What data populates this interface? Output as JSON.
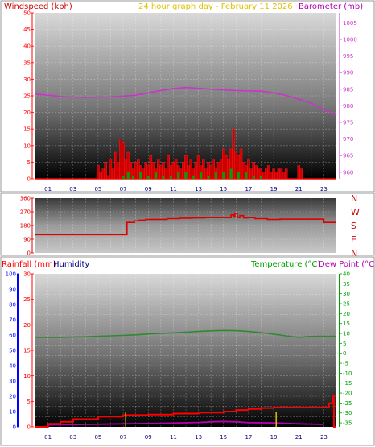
{
  "header": {
    "left": "Windspeed (kph)",
    "center": "24 hour graph day - February 11 2026",
    "right": "Barometer (mb)"
  },
  "bottom_header": {
    "rain": "Rainfall (mm)",
    "humidity": "Humidity",
    "temperature": "Temperature (°C)",
    "dewpoint": "Dew Point (°C)"
  },
  "colors": {
    "wind": "#ff0000",
    "barometer": "#cc33cc",
    "gust_fill": "#cc0000",
    "avg_wind": "#00a000",
    "direction": "#dd0000",
    "temperature": "#2f8a2f",
    "rain": "#ff0000",
    "dewpoint": "#b400b4",
    "humidity_axis": "#0000ff",
    "rain_axis": "#ff0000",
    "temp_axis": "#00a000",
    "header_left": "#cc0000",
    "header_center": "#e0c000",
    "header_right": "#b000b0"
  },
  "chart_data": [
    {
      "type": "bar",
      "panel": "wind",
      "x_ticks": [
        "01",
        "03",
        "05",
        "07",
        "09",
        "11",
        "13",
        "15",
        "17",
        "19",
        "21",
        "23"
      ],
      "x_range": [
        0,
        24
      ],
      "y_left_ticks": [
        "50",
        "45",
        "40",
        "35",
        "30",
        "25",
        "20",
        "15",
        "10",
        "5",
        "0"
      ],
      "y_left_range": [
        0,
        50
      ],
      "y_right_ticks": [
        "1005",
        "1000",
        "995",
        "990",
        "985",
        "980",
        "975",
        "970",
        "965",
        "960"
      ],
      "y_right_range": [
        958,
        1008
      ],
      "barometer": {
        "x": [
          0,
          1,
          2,
          3,
          4,
          5,
          6,
          7,
          8,
          9,
          10,
          11,
          12,
          13,
          14,
          15,
          16,
          17,
          18,
          19,
          20,
          21,
          22,
          23,
          24
        ],
        "y": [
          983.5,
          983.2,
          982.8,
          982.6,
          982.5,
          982.6,
          982.7,
          982.9,
          983.2,
          983.9,
          984.6,
          985.2,
          985.5,
          985.3,
          985.0,
          984.8,
          984.6,
          984.5,
          984.4,
          983.9,
          983.1,
          982.0,
          980.8,
          979.0,
          977.2
        ]
      },
      "gusts": {
        "x": [
          5.0,
          5.2,
          5.4,
          5.6,
          5.8,
          6.0,
          6.2,
          6.4,
          6.6,
          6.8,
          7.0,
          7.2,
          7.4,
          7.6,
          7.8,
          8.0,
          8.2,
          8.4,
          8.6,
          8.8,
          9.0,
          9.2,
          9.4,
          9.6,
          9.8,
          10.0,
          10.2,
          10.4,
          10.6,
          10.8,
          11.0,
          11.2,
          11.4,
          11.6,
          11.8,
          12.0,
          12.2,
          12.4,
          12.6,
          12.8,
          13.0,
          13.2,
          13.4,
          13.6,
          13.8,
          14.0,
          14.2,
          14.4,
          14.6,
          14.8,
          15.0,
          15.2,
          15.4,
          15.6,
          15.8,
          16.0,
          16.2,
          16.4,
          16.6,
          16.8,
          17.0,
          17.2,
          17.4,
          17.6,
          17.8,
          18.0,
          18.2,
          18.4,
          18.6,
          18.8,
          19.0,
          19.2,
          19.4,
          19.6,
          19.8,
          20.0,
          21.0,
          21.2
        ],
        "y": [
          4,
          2,
          3,
          5,
          1,
          6,
          3,
          8,
          5,
          12,
          11,
          6,
          8,
          5,
          3,
          5,
          6,
          4,
          3,
          5,
          4,
          7,
          5,
          3,
          6,
          4,
          5,
          3,
          7,
          4,
          5,
          6,
          4,
          3,
          5,
          7,
          4,
          6,
          3,
          5,
          7,
          4,
          6,
          3,
          5,
          4,
          6,
          3,
          5,
          6,
          9,
          7,
          6,
          9,
          15,
          8,
          7,
          9,
          5,
          4,
          6,
          3,
          5,
          4,
          3,
          3,
          2,
          3,
          4,
          2,
          3,
          2,
          3,
          3,
          2,
          3,
          4,
          3
        ]
      },
      "average": {
        "x": [
          7.0,
          7.4,
          7.8,
          8.4,
          9.0,
          9.6,
          10.2,
          10.8,
          11.4,
          12.0,
          12.6,
          13.2,
          13.8,
          14.4,
          15.0,
          15.6,
          16.2,
          16.8,
          17.4,
          18.0
        ],
        "y": [
          1,
          2,
          1,
          2,
          1,
          2,
          1,
          1,
          2,
          2,
          1,
          2,
          1,
          2,
          2,
          3,
          2,
          2,
          1,
          1
        ]
      }
    },
    {
      "type": "line",
      "panel": "wind-direction",
      "y_ticks": [
        "360",
        "270",
        "180",
        "90",
        "0"
      ],
      "y_range": [
        0,
        360
      ],
      "compass_labels": [
        "N",
        "W",
        "S",
        "E",
        "N"
      ],
      "direction": {
        "x": [
          0,
          7.2,
          7.3,
          7.9,
          8.2,
          8.8,
          9.5,
          10.5,
          11.5,
          12.5,
          13.5,
          14.5,
          15.3,
          15.6,
          15.8,
          15.9,
          16.1,
          16.3,
          16.6,
          17.0,
          17.5,
          18.5,
          19.5,
          21.0,
          22.5,
          23.0,
          24.0
        ],
        "y": [
          120,
          120,
          200,
          210,
          215,
          220,
          220,
          225,
          228,
          230,
          232,
          232,
          232,
          250,
          235,
          260,
          232,
          245,
          230,
          232,
          225,
          220,
          222,
          222,
          222,
          200,
          200
        ]
      }
    },
    {
      "type": "line",
      "panel": "temperature-rain",
      "x_ticks": [
        "01",
        "03",
        "05",
        "07",
        "09",
        "11",
        "13",
        "15",
        "17",
        "19",
        "21",
        "23"
      ],
      "x_range": [
        0,
        24
      ],
      "humidity_ticks": [
        "100",
        "90",
        "80",
        "70",
        "60",
        "50",
        "40",
        "30",
        "20",
        "10",
        "0"
      ],
      "humidity_range": [
        0,
        100
      ],
      "rain_ticks": [
        "30",
        "25",
        "20",
        "15",
        "10",
        "5",
        "0"
      ],
      "rain_range": [
        0,
        30
      ],
      "temp_ticks": [
        "40",
        "35",
        "30",
        "25",
        "20",
        "15",
        "10",
        "5",
        "0",
        "-5",
        "-10",
        "-15",
        "-20",
        "-25",
        "-30",
        "-35"
      ],
      "temp_range": [
        -37,
        40
      ],
      "temperature": {
        "x": [
          0,
          1,
          2,
          3,
          4,
          5,
          6,
          7,
          8,
          9,
          10,
          11,
          12,
          13,
          14,
          15,
          16,
          17,
          18,
          19,
          20,
          21,
          22,
          23,
          24
        ],
        "y": [
          8.0,
          8.0,
          8.0,
          8.2,
          8.3,
          8.6,
          8.8,
          9.0,
          9.3,
          9.7,
          10.0,
          10.3,
          10.6,
          11.0,
          11.3,
          11.5,
          11.4,
          11.0,
          10.4,
          9.6,
          8.8,
          8.0,
          8.5,
          8.6,
          8.6
        ]
      },
      "rainfall": {
        "x": [
          0,
          0.8,
          1.0,
          2.0,
          3.0,
          5.0,
          7.0,
          9.0,
          11.0,
          13.0,
          15.0,
          16.0,
          17.0,
          18.0,
          19.0,
          21.0,
          22.0,
          23.0,
          23.4,
          23.7,
          23.8,
          24.0
        ],
        "y": [
          0,
          0,
          0.6,
          1.0,
          1.5,
          2.0,
          2.3,
          2.4,
          2.6,
          2.8,
          3.0,
          3.3,
          3.5,
          3.7,
          3.8,
          3.8,
          3.8,
          3.8,
          4.6,
          6.0,
          0,
          0
        ]
      },
      "dewpoint": {
        "x": [
          1.0,
          4.0,
          7.0,
          10.0,
          13.0,
          14.0,
          15.0,
          16.0,
          17.0,
          19.0,
          21.0,
          23.0
        ],
        "y": [
          -36.0,
          -35.8,
          -35.5,
          -35.2,
          -34.8,
          -34.5,
          -34.3,
          -34.5,
          -34.9,
          -35.0,
          -35.5,
          -35.8
        ]
      },
      "rain_rate_marks": {
        "x": [
          7.2,
          19.2
        ],
        "y": [
          3,
          3
        ]
      }
    }
  ]
}
